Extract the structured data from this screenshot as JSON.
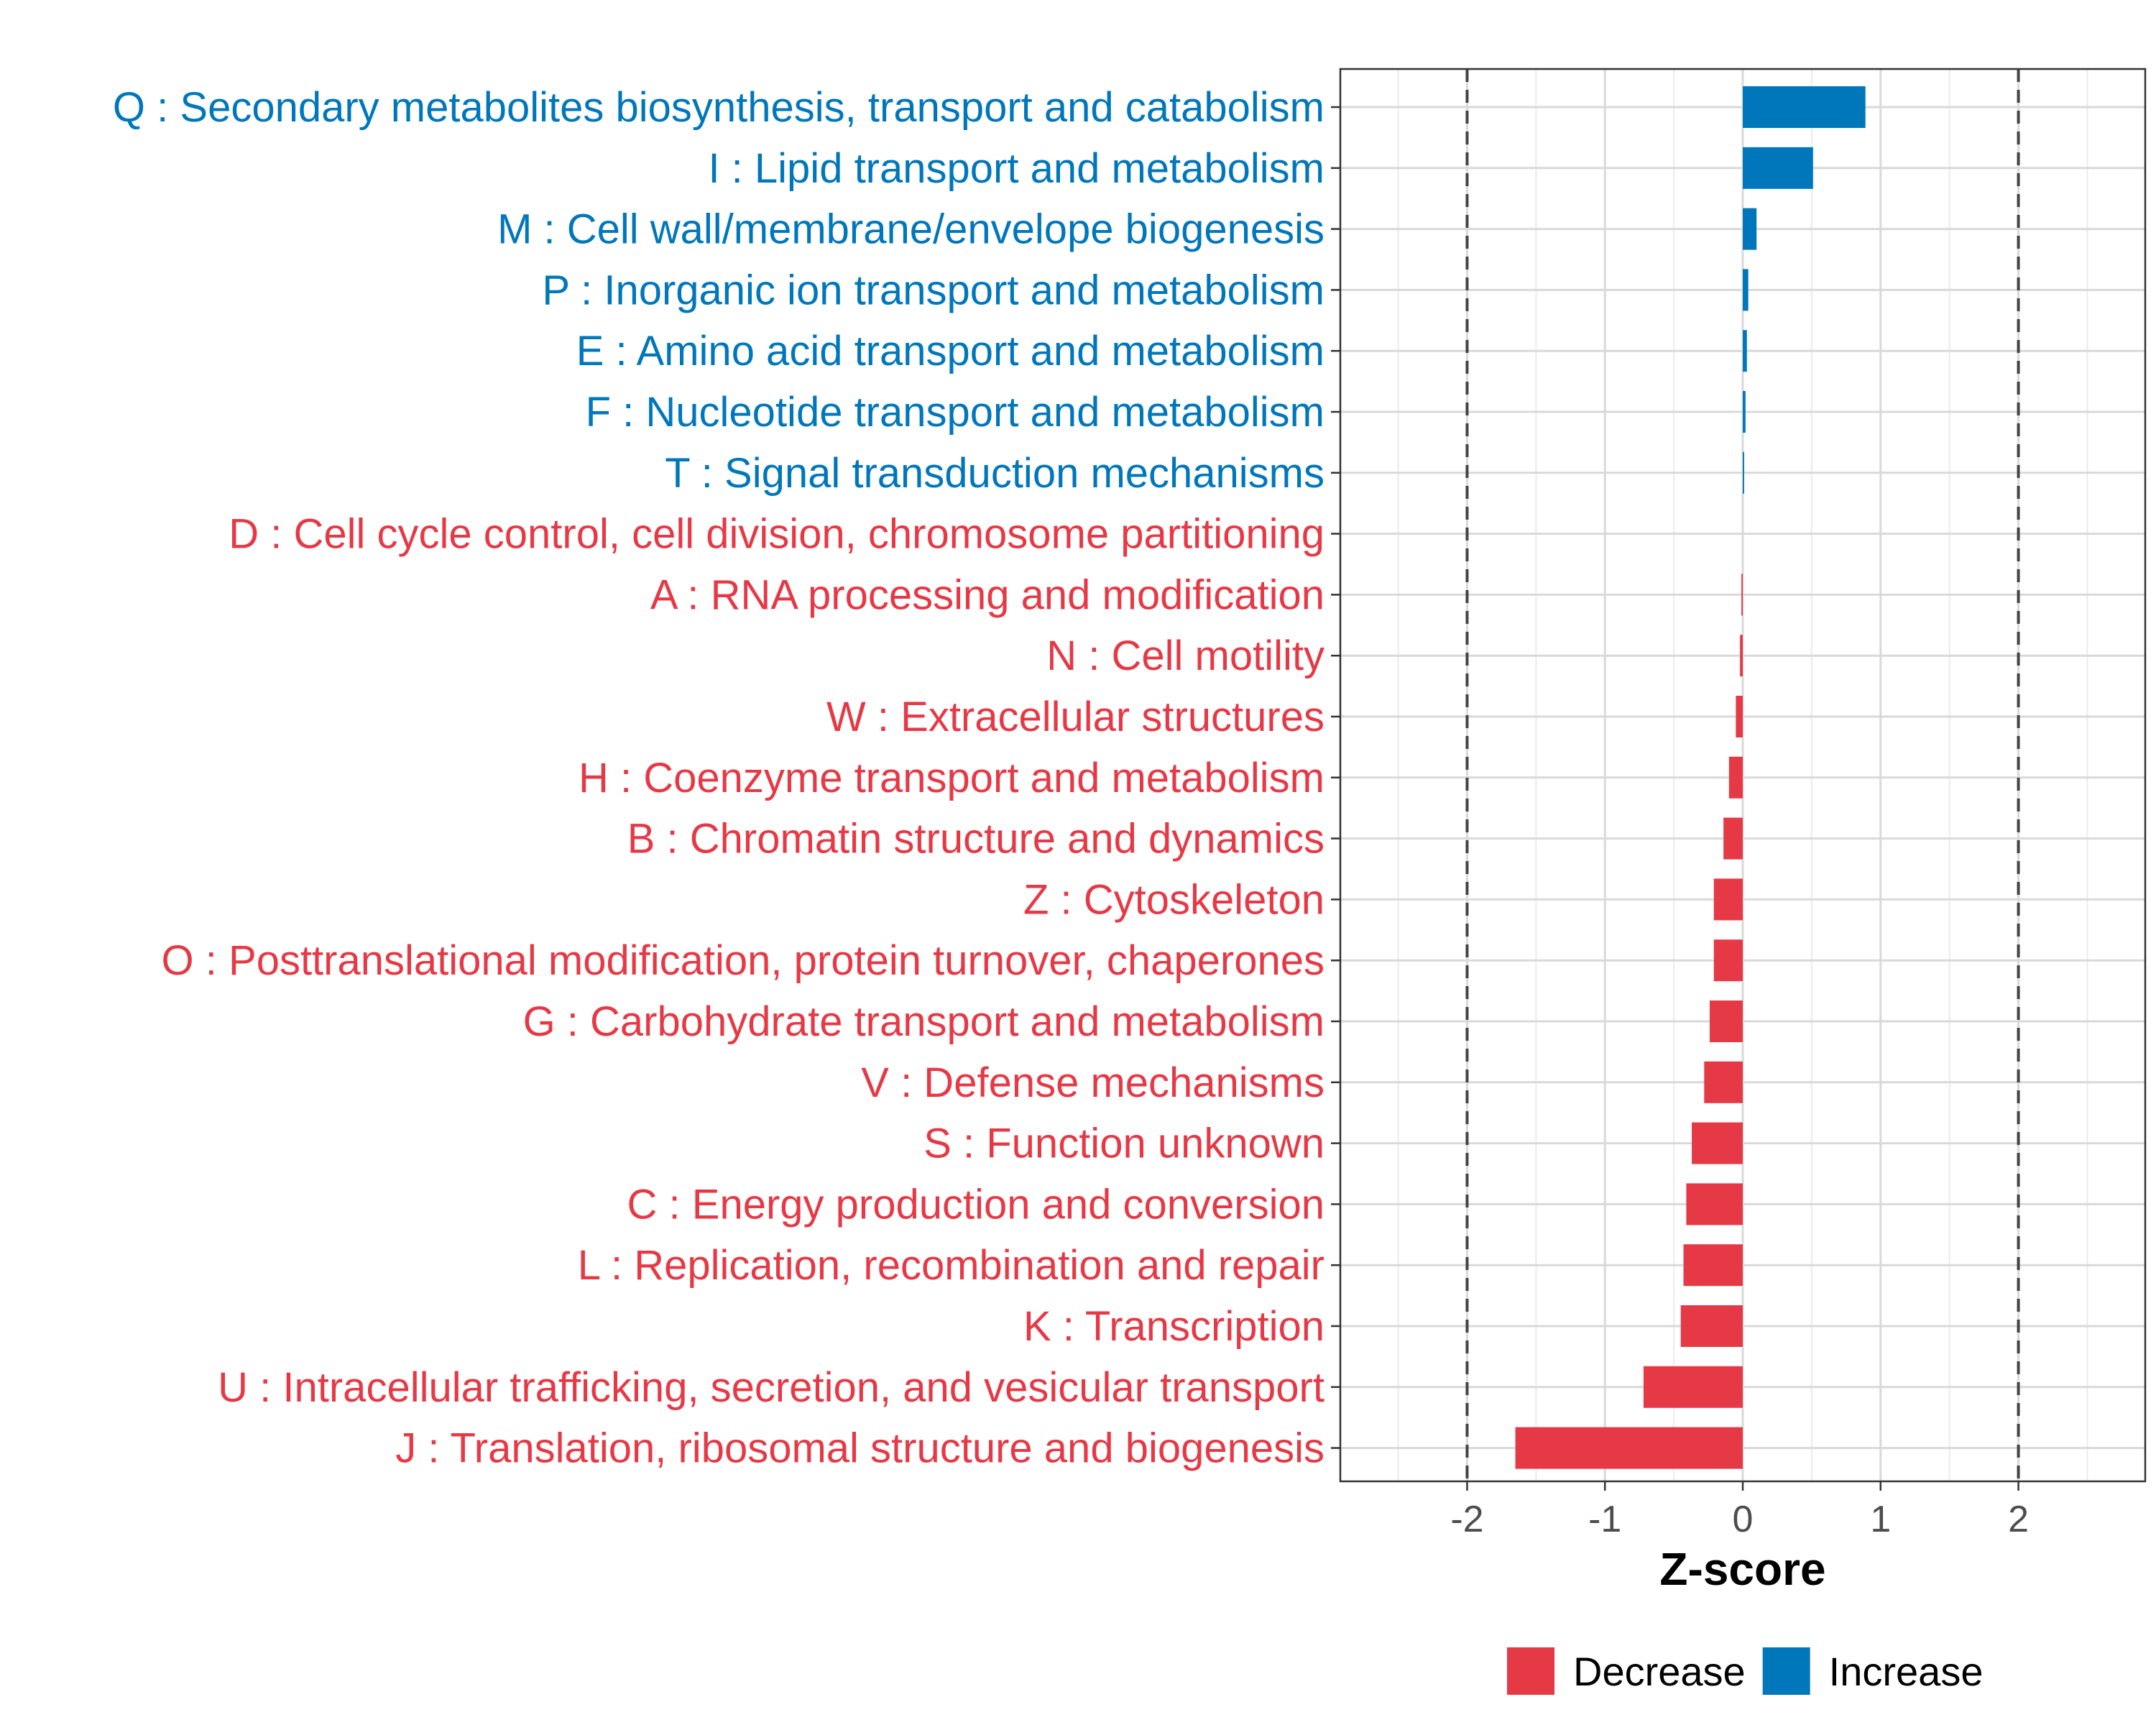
{
  "chart_data": {
    "type": "bar",
    "orientation": "horizontal",
    "xlabel": "Z-score",
    "xlim": [
      -2.92,
      2.92
    ],
    "xticks": [
      -2,
      -1,
      0,
      1,
      2
    ],
    "xtick_labels": [
      "-2",
      "-1",
      "0",
      "1",
      "2"
    ],
    "reference_lines": [
      -2,
      2
    ],
    "grid": true,
    "legend_position": "bottom",
    "legend": [
      {
        "label": "Decrease",
        "color": "#E63946"
      },
      {
        "label": "Increase",
        "color": "#0077BB"
      }
    ],
    "categories": [
      {
        "label": "Q : Secondary metabolites biosynthesis, transport and catabolism",
        "value": 0.89,
        "direction": "Increase"
      },
      {
        "label": "I : Lipid transport and metabolism",
        "value": 0.51,
        "direction": "Increase"
      },
      {
        "label": "M : Cell wall/membrane/envelope biogenesis",
        "value": 0.1,
        "direction": "Increase"
      },
      {
        "label": "P : Inorganic ion transport and metabolism",
        "value": 0.04,
        "direction": "Increase"
      },
      {
        "label": "E : Amino acid transport and metabolism",
        "value": 0.03,
        "direction": "Increase"
      },
      {
        "label": "F : Nucleotide transport and metabolism",
        "value": 0.02,
        "direction": "Increase"
      },
      {
        "label": "T : Signal transduction mechanisms",
        "value": 0.01,
        "direction": "Increase"
      },
      {
        "label": "D : Cell cycle control, cell division, chromosome partitioning",
        "value": 0.0,
        "direction": "Decrease"
      },
      {
        "label": "A : RNA processing and modification",
        "value": -0.01,
        "direction": "Decrease"
      },
      {
        "label": "N : Cell motility",
        "value": -0.02,
        "direction": "Decrease"
      },
      {
        "label": "W : Extracellular structures",
        "value": -0.05,
        "direction": "Decrease"
      },
      {
        "label": "H : Coenzyme transport and metabolism",
        "value": -0.1,
        "direction": "Decrease"
      },
      {
        "label": "B : Chromatin structure and dynamics",
        "value": -0.14,
        "direction": "Decrease"
      },
      {
        "label": "Z : Cytoskeleton",
        "value": -0.21,
        "direction": "Decrease"
      },
      {
        "label": "O : Posttranslational modification, protein turnover, chaperones",
        "value": -0.21,
        "direction": "Decrease"
      },
      {
        "label": "G : Carbohydrate transport and metabolism",
        "value": -0.24,
        "direction": "Decrease"
      },
      {
        "label": "V : Defense mechanisms",
        "value": -0.28,
        "direction": "Decrease"
      },
      {
        "label": "S : Function unknown",
        "value": -0.37,
        "direction": "Decrease"
      },
      {
        "label": "C : Energy production and conversion",
        "value": -0.41,
        "direction": "Decrease"
      },
      {
        "label": "L : Replication, recombination and repair",
        "value": -0.43,
        "direction": "Decrease"
      },
      {
        "label": "K : Transcription",
        "value": -0.45,
        "direction": "Decrease"
      },
      {
        "label": "U : Intracellular trafficking, secretion, and vesicular transport",
        "value": -0.72,
        "direction": "Decrease"
      },
      {
        "label": "J : Translation, ribosomal structure and biogenesis",
        "value": -1.65,
        "direction": "Decrease"
      }
    ]
  }
}
